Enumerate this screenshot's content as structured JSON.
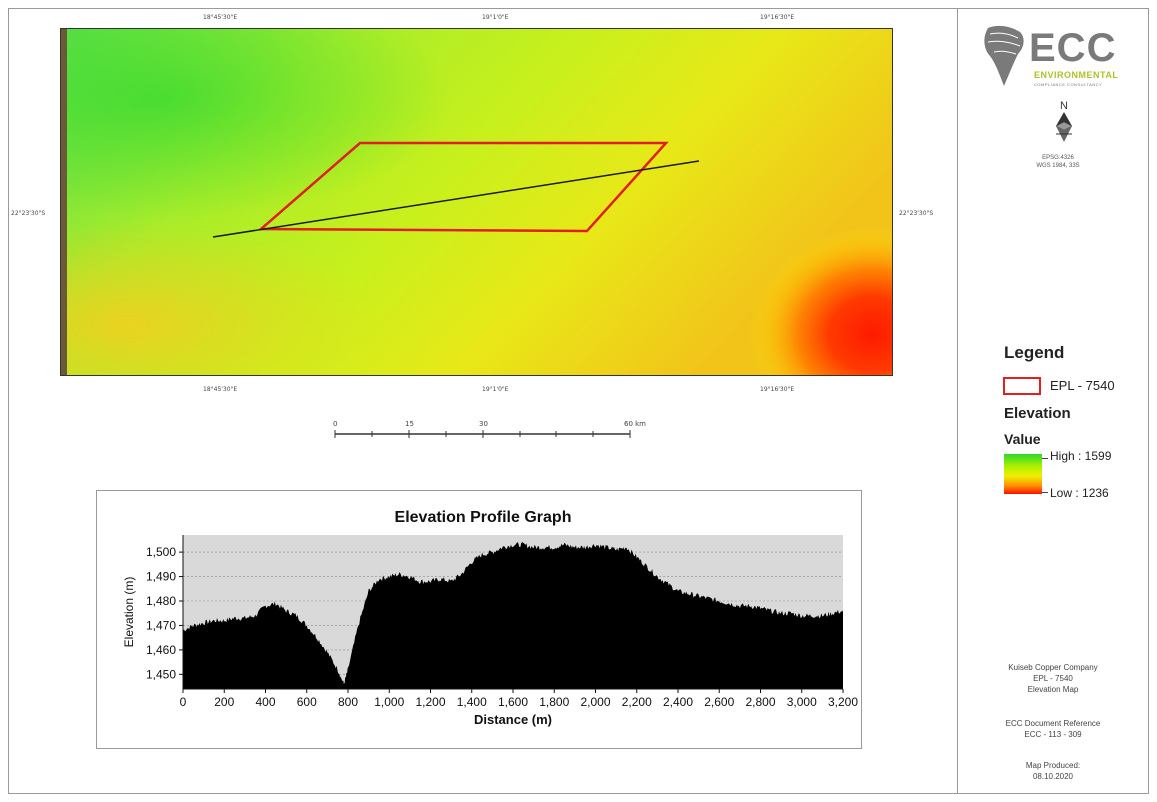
{
  "map": {
    "coords_top": [
      "18°45'30\"E",
      "19°1'0\"E",
      "19°16'30\"E"
    ],
    "coords_bottom": [
      "18°45'30\"E",
      "19°1'0\"E",
      "19°16'30\"E"
    ],
    "coord_left": "22°23'30\"S",
    "coord_right": "22°23'30\"S",
    "colors": {
      "high": "#2fd82f",
      "mid": "#f0f000",
      "low": "#ff1000",
      "boundary": "#e02020",
      "profile_line": "#1a1a1a"
    }
  },
  "scalebar": {
    "labels": [
      "0",
      "15",
      "30",
      "60 km"
    ]
  },
  "logo": {
    "main": "ECC",
    "sub": "ENVIRONMENTAL",
    "tagline": "COMPLIANCE CONSULTANCY",
    "north": "N"
  },
  "projection": {
    "line1": "EPSG:4326",
    "line2": "WGS 1984, 33S"
  },
  "legend": {
    "title": "Legend",
    "epl_label": "EPL - 7540",
    "elevation_title": "Elevation",
    "value_title": "Value",
    "high_label": "High : 1599",
    "low_label": "Low : 1236"
  },
  "info": {
    "company": "Kuiseb Copper Company",
    "epl": "EPL - 7540",
    "map_name": "Elevation Map",
    "doc_ref_label": "ECC Document Reference",
    "doc_ref": "ECC - 113 - 309",
    "produced_label": "Map Produced:",
    "produced_date": "08.10.2020"
  },
  "chart_data": {
    "type": "area",
    "title": "Elevation Profile Graph",
    "xlabel": "Distance (m)",
    "ylabel": "Elevation (m)",
    "xlim": [
      0,
      3200
    ],
    "ylim": [
      1444,
      1507
    ],
    "x_ticks": [
      0,
      200,
      400,
      600,
      800,
      1000,
      1200,
      1400,
      1600,
      1800,
      2000,
      2200,
      2400,
      2600,
      2800,
      3000,
      3200
    ],
    "x_tick_labels": [
      "0",
      "200",
      "400",
      "600",
      "800",
      "1,000",
      "1,200",
      "1,400",
      "1,600",
      "1,800",
      "2,000",
      "2,200",
      "2,400",
      "2,600",
      "2,800",
      "3,000",
      "3,200"
    ],
    "y_ticks": [
      1450,
      1460,
      1470,
      1480,
      1490,
      1500
    ],
    "y_tick_labels": [
      "1,450",
      "1,460",
      "1,470",
      "1,480",
      "1,490",
      "1,500"
    ],
    "grid": true,
    "series": [
      {
        "x": [
          0,
          50,
          100,
          150,
          200,
          250,
          300,
          350,
          400,
          450,
          500,
          550,
          600,
          650,
          700,
          750,
          780,
          800,
          850,
          900,
          950,
          1000,
          1050,
          1100,
          1150,
          1200,
          1250,
          1300,
          1350,
          1400,
          1450,
          1500,
          1550,
          1600,
          1650,
          1700,
          1750,
          1800,
          1850,
          1900,
          1950,
          2000,
          2050,
          2100,
          2150,
          2200,
          2250,
          2300,
          2350,
          2400,
          2450,
          2500,
          2550,
          2600,
          2650,
          2700,
          2750,
          2800,
          2850,
          2900,
          2950,
          3000,
          3050,
          3100,
          3150,
          3200
        ],
        "y": [
          1468,
          1470,
          1471,
          1472,
          1472,
          1473,
          1473,
          1474,
          1478,
          1479,
          1476,
          1474,
          1470,
          1465,
          1459,
          1452,
          1446,
          1452,
          1470,
          1484,
          1489,
          1490,
          1491,
          1490,
          1488,
          1488,
          1489,
          1488,
          1491,
          1496,
          1499,
          1500,
          1502,
          1503,
          1503,
          1502,
          1502,
          1502,
          1503,
          1502,
          1502,
          1503,
          1502,
          1501,
          1502,
          1498,
          1494,
          1490,
          1487,
          1484,
          1483,
          1482,
          1481,
          1480,
          1479,
          1478,
          1478,
          1477,
          1476,
          1475,
          1475,
          1474,
          1474,
          1474,
          1475,
          1476
        ]
      }
    ]
  }
}
